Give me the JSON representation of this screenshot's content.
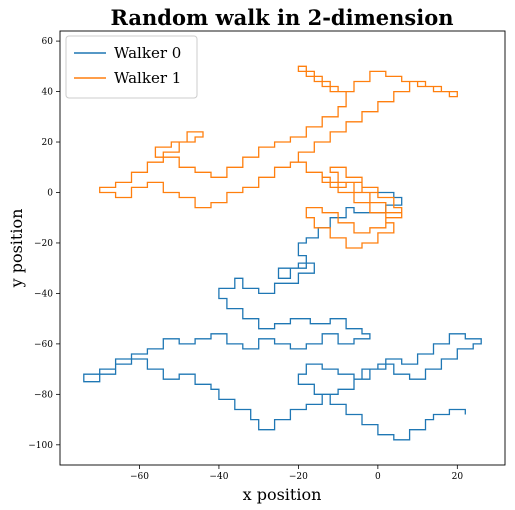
{
  "chart_data": {
    "type": "line",
    "title": "Random walk in 2-dimension",
    "xlabel": "x position",
    "ylabel": "y position",
    "xlim": [
      -80,
      32
    ],
    "ylim": [
      -108,
      64
    ],
    "xticks": [
      -60,
      -40,
      -20,
      0,
      20
    ],
    "yticks": [
      -100,
      -80,
      -60,
      -40,
      -20,
      0,
      20,
      40,
      60
    ],
    "grid": false,
    "legend_position": "top-left",
    "series": [
      {
        "name": "Walker 0",
        "color": "#1f77b4",
        "step_style": "lattice",
        "x": [
          0,
          4,
          6,
          2,
          -6,
          -8,
          -12,
          -15,
          -18,
          -20,
          -18,
          -22,
          -25,
          -20,
          -16,
          -20,
          -26,
          -30,
          -34,
          -36,
          -40,
          -38,
          -34,
          -30,
          -26,
          -22,
          -17,
          -12,
          -8,
          -4,
          -2,
          -6,
          -10,
          -14,
          -18,
          -22,
          -26,
          -30,
          -34,
          -38,
          -42,
          -46,
          -50,
          -54,
          -58,
          -62,
          -66,
          -70,
          -74,
          -70,
          -66,
          -62,
          -58,
          -54,
          -50,
          -46,
          -42,
          -40,
          -36,
          -32,
          -30,
          -26,
          -22,
          -18,
          -14,
          -10,
          -6,
          -4,
          0,
          4,
          8,
          12,
          16,
          20,
          24,
          26,
          22,
          18,
          14,
          10,
          6,
          2,
          -2,
          -6,
          -10,
          -14,
          -18,
          -20,
          -16,
          -12,
          -8,
          -4,
          0,
          4,
          8,
          12,
          14,
          18,
          22
        ],
        "y": [
          0,
          -2,
          -5,
          -8,
          -6,
          -10,
          -14,
          -18,
          -20,
          -25,
          -30,
          -34,
          -30,
          -28,
          -32,
          -36,
          -40,
          -38,
          -34,
          -38,
          -42,
          -46,
          -50,
          -54,
          -52,
          -50,
          -52,
          -50,
          -54,
          -56,
          -58,
          -60,
          -56,
          -60,
          -62,
          -60,
          -58,
          -62,
          -60,
          -56,
          -58,
          -60,
          -58,
          -62,
          -64,
          -66,
          -70,
          -72,
          -75,
          -72,
          -68,
          -66,
          -70,
          -74,
          -72,
          -76,
          -78,
          -82,
          -86,
          -90,
          -94,
          -90,
          -86,
          -84,
          -80,
          -78,
          -74,
          -70,
          -68,
          -72,
          -74,
          -70,
          -66,
          -62,
          -60,
          -58,
          -56,
          -60,
          -64,
          -68,
          -66,
          -70,
          -74,
          -72,
          -70,
          -68,
          -72,
          -76,
          -80,
          -84,
          -88,
          -92,
          -96,
          -98,
          -94,
          -90,
          -88,
          -86,
          -88
        ]
      },
      {
        "name": "Walker 1",
        "color": "#ff7f0e",
        "step_style": "lattice",
        "x": [
          0,
          -4,
          -8,
          -12,
          -14,
          -18,
          -22,
          -26,
          -30,
          -34,
          -38,
          -42,
          -46,
          -50,
          -54,
          -58,
          -62,
          -66,
          -70,
          -66,
          -62,
          -58,
          -54,
          -50,
          -46,
          -44,
          -48,
          -52,
          -56,
          -50,
          -46,
          -42,
          -38,
          -34,
          -30,
          -26,
          -22,
          -18,
          -14,
          -10,
          -8,
          -12,
          -16,
          -20,
          -18,
          -14,
          -10,
          -6,
          -2,
          2,
          6,
          10,
          14,
          18,
          20,
          16,
          12,
          8,
          4,
          0,
          -4,
          -8,
          -12,
          -16,
          -20,
          -18,
          -14,
          -10,
          -6,
          -2,
          2,
          4,
          0,
          -4,
          -8,
          -12,
          -16,
          -18,
          -14,
          -10,
          -6,
          -2,
          2,
          6,
          4,
          0,
          -4,
          -8,
          -12,
          -10,
          -6,
          -2,
          2,
          6,
          4
        ],
        "y": [
          0,
          4,
          2,
          6,
          8,
          12,
          10,
          6,
          2,
          0,
          -4,
          -6,
          -2,
          0,
          4,
          2,
          -2,
          0,
          2,
          4,
          8,
          12,
          16,
          20,
          22,
          24,
          20,
          18,
          14,
          10,
          8,
          6,
          10,
          14,
          18,
          20,
          22,
          26,
          30,
          34,
          40,
          44,
          48,
          50,
          46,
          42,
          40,
          44,
          48,
          46,
          44,
          42,
          40,
          38,
          40,
          42,
          44,
          40,
          36,
          32,
          28,
          24,
          20,
          16,
          12,
          8,
          4,
          0,
          -4,
          -8,
          -12,
          -16,
          -20,
          -22,
          -18,
          -14,
          -10,
          -6,
          -8,
          -12,
          -16,
          -14,
          -10,
          -6,
          -2,
          2,
          6,
          10,
          8,
          4,
          0,
          -4,
          -8,
          -6,
          -2
        ]
      }
    ]
  }
}
